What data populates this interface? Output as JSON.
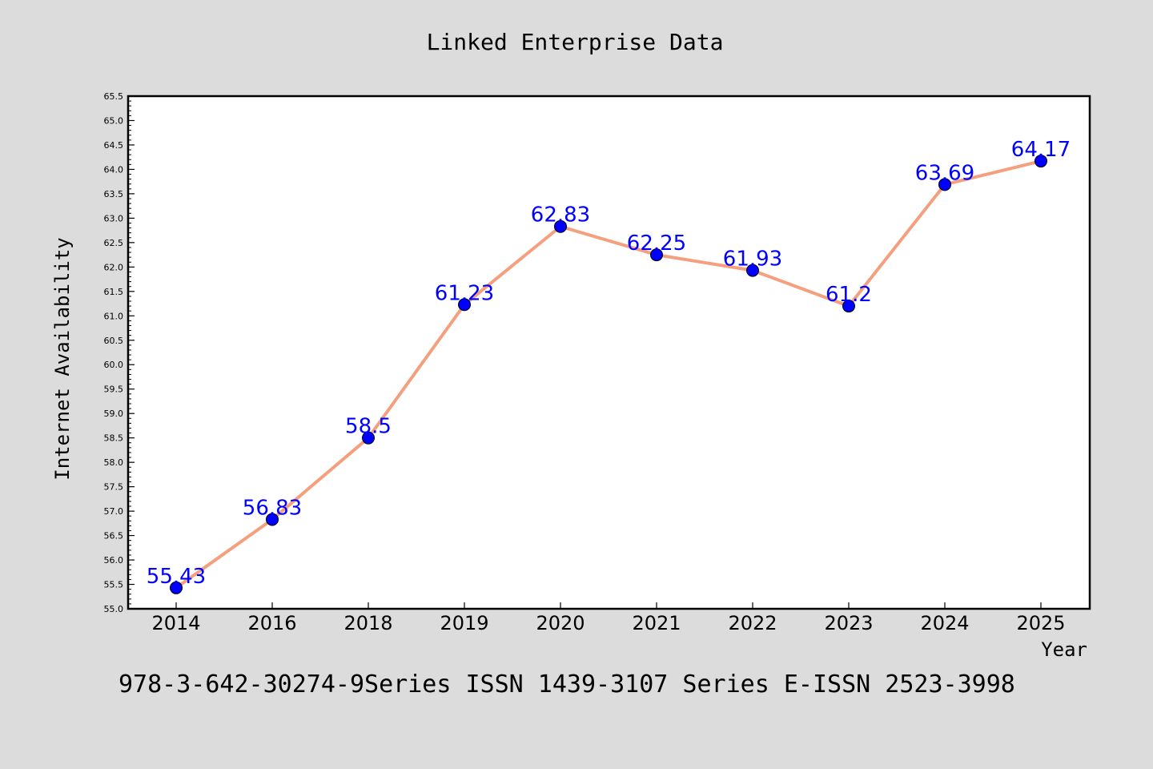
{
  "chart_data": {
    "type": "line",
    "title": "Linked Enterprise Data",
    "xlabel": "Year",
    "ylabel": "Internet Availability",
    "categories": [
      "2014",
      "2016",
      "2018",
      "2019",
      "2020",
      "2021",
      "2022",
      "2023",
      "2024",
      "2025"
    ],
    "series": [
      {
        "values": [
          55.43,
          56.83,
          58.5,
          61.23,
          62.83,
          62.25,
          61.93,
          61.2,
          63.69,
          64.17
        ],
        "labels": [
          "55.43",
          "56.83",
          "58.5",
          "61.23",
          "62.83",
          "62.25",
          "61.93",
          "61.2",
          "63.69",
          "64.17"
        ],
        "line_color": "#f4a07f",
        "marker_color": "#0000ff"
      }
    ],
    "ylim": [
      55.0,
      65.5
    ],
    "yticks": [
      "55.0",
      "55.5",
      "56.0",
      "56.5",
      "57.0",
      "57.5",
      "58.0",
      "58.5",
      "59.0",
      "59.5",
      "60.0",
      "60.5",
      "61.0",
      "61.5",
      "62.0",
      "62.5",
      "63.0",
      "63.5",
      "64.0",
      "64.5",
      "65.0",
      "65.5"
    ],
    "grid": false,
    "label_color": "#0000ff",
    "background": "#dcdcdc",
    "plot_background": "#ffffff"
  },
  "footer": {
    "text": "978-3-642-30274-9Series ISSN 1439-3107 Series E-ISSN 2523-3998"
  }
}
